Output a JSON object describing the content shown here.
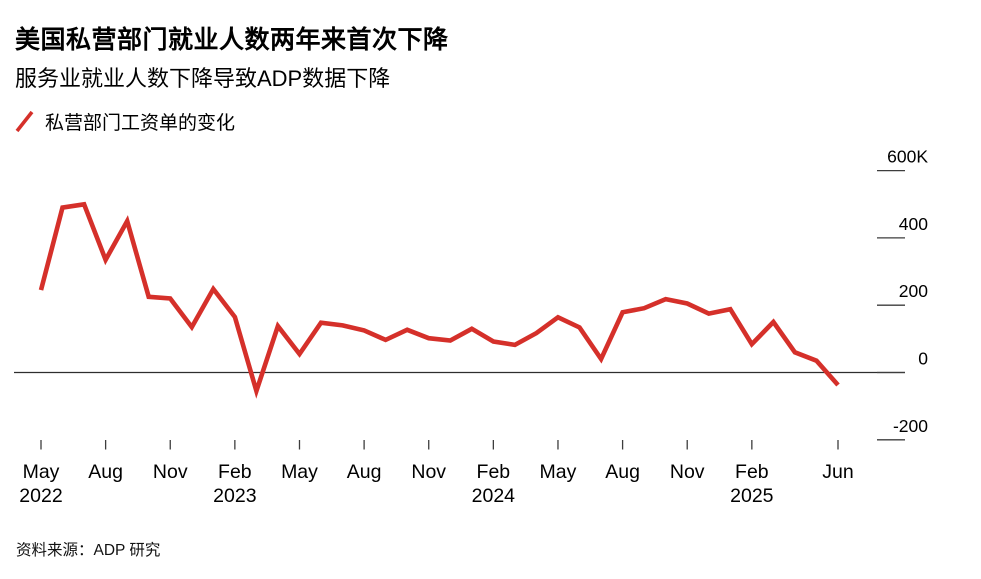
{
  "header": {
    "title": "美国私营部门就业人数两年来首次下降",
    "subtitle": "服务业就业人数下降导致ADP数据下降"
  },
  "legend": {
    "label": "私营部门工资单的变化"
  },
  "source": {
    "label": "资料来源：ADP 研究"
  },
  "colors": {
    "line": "#d5302a",
    "axis": "#3d3d3d",
    "text": "#000000",
    "background": "#ffffff"
  },
  "chart_data": {
    "type": "line",
    "title": "美国私营部门就业人数两年来首次下降",
    "subtitle": "服务业就业人数下降导致ADP数据下降",
    "series_name": "私营部门工资单的变化",
    "unit": "thousands of jobs (K)",
    "grid": "off",
    "legend_position": "top-left",
    "y_axis_side": "right",
    "ylim": [
      -280,
      660
    ],
    "x": [
      "May 2022",
      "Jun 2022",
      "Jul 2022",
      "Aug 2022",
      "Sep 2022",
      "Oct 2022",
      "Nov 2022",
      "Dec 2022",
      "Jan 2023",
      "Feb 2023",
      "Mar 2023",
      "Apr 2023",
      "May 2023",
      "Jun 2023",
      "Jul 2023",
      "Aug 2023",
      "Sep 2023",
      "Oct 2023",
      "Nov 2023",
      "Dec 2023",
      "Jan 2024",
      "Feb 2024",
      "Mar 2024",
      "Apr 2024",
      "May 2024",
      "Jun 2024",
      "Jul 2024",
      "Aug 2024",
      "Sep 2024",
      "Oct 2024",
      "Nov 2024",
      "Dec 2024",
      "Jan 2025",
      "Feb 2025",
      "Mar 2025",
      "Apr 2025",
      "May 2025",
      "Jun 2025"
    ],
    "values": [
      245,
      490,
      500,
      335,
      450,
      225,
      220,
      135,
      248,
      165,
      -55,
      138,
      55,
      148,
      140,
      125,
      97,
      127,
      102,
      95,
      130,
      92,
      82,
      117,
      164,
      134,
      40,
      179,
      191,
      218,
      205,
      175,
      188,
      84,
      150,
      60,
      35,
      -37
    ],
    "y_ticks": [
      {
        "value": 600,
        "label": "600K"
      },
      {
        "value": 400,
        "label": "400"
      },
      {
        "value": 200,
        "label": "200"
      },
      {
        "value": 0,
        "label": "0"
      },
      {
        "value": -200,
        "label": "-200"
      }
    ],
    "x_ticks": [
      {
        "index": 0,
        "month": "May",
        "year": "2022"
      },
      {
        "index": 3,
        "month": "Aug",
        "year": ""
      },
      {
        "index": 6,
        "month": "Nov",
        "year": ""
      },
      {
        "index": 9,
        "month": "Feb",
        "year": "2023"
      },
      {
        "index": 12,
        "month": "May",
        "year": ""
      },
      {
        "index": 15,
        "month": "Aug",
        "year": ""
      },
      {
        "index": 18,
        "month": "Nov",
        "year": ""
      },
      {
        "index": 21,
        "month": "Feb",
        "year": "2024"
      },
      {
        "index": 24,
        "month": "May",
        "year": ""
      },
      {
        "index": 27,
        "month": "Aug",
        "year": ""
      },
      {
        "index": 30,
        "month": "Nov",
        "year": ""
      },
      {
        "index": 33,
        "month": "Feb",
        "year": "2025"
      },
      {
        "index": 37,
        "month": "Jun",
        "year": ""
      }
    ]
  }
}
